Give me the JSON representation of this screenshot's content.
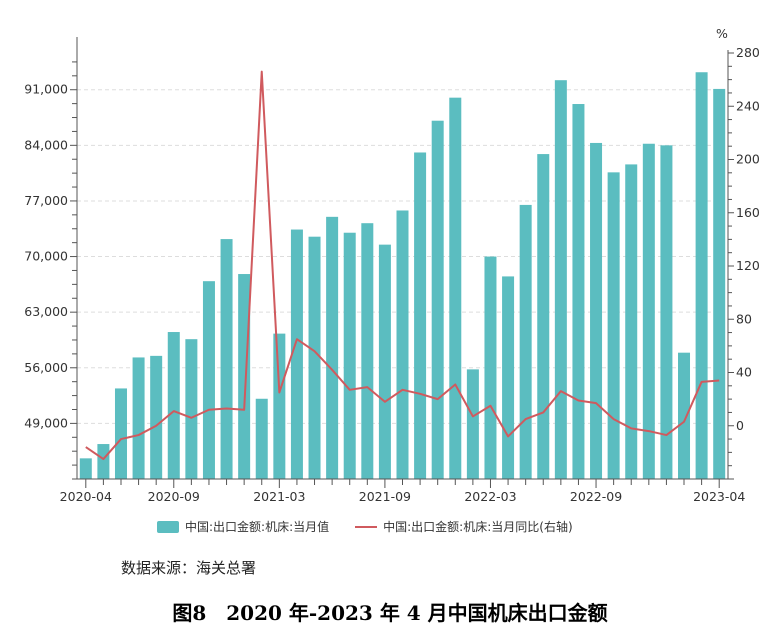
{
  "chart_data": {
    "type": "bar+line",
    "categories": [
      "2020-04",
      "2020-05",
      "2020-06",
      "2020-07",
      "2020-08",
      "2020-09",
      "2020-10",
      "2020-11",
      "2020-12",
      "2021-01",
      "2021-02",
      "2021-03",
      "2021-04",
      "2021-05",
      "2021-06",
      "2021-07",
      "2021-08",
      "2021-09",
      "2021-10",
      "2021-11",
      "2021-12",
      "2022-01",
      "2022-02",
      "2022-03",
      "2022-04",
      "2022-05",
      "2022-06",
      "2022-07",
      "2022-08",
      "2022-09",
      "2022-10",
      "2022-11",
      "2022-12",
      "2023-01",
      "2023-02",
      "2023-03",
      "2023-04"
    ],
    "x_tick_labels": [
      "2020-04",
      "2020-09",
      "2021-03",
      "2021-09",
      "2022-03",
      "2022-09",
      "2023-04"
    ],
    "series": [
      {
        "name": "中国:出口金额:机床:当月值",
        "type": "bar",
        "axis": "left",
        "color": "#5bbdc0",
        "values": [
          44600,
          46400,
          53400,
          57300,
          57500,
          60500,
          59600,
          66900,
          72200,
          67800,
          52100,
          60300,
          73400,
          72500,
          75000,
          73000,
          74200,
          71500,
          75800,
          83100,
          87100,
          90000,
          55800,
          70000,
          67500,
          76500,
          82900,
          92200,
          89200,
          84300,
          80600,
          81600,
          84200,
          84000,
          57900,
          93200,
          91100
        ]
      },
      {
        "name": "中国:出口金额:机床:当月同比(右轴)",
        "type": "line",
        "axis": "right",
        "color": "#d05a5e",
        "values": [
          -16,
          -25,
          -10,
          -7,
          0,
          11,
          6,
          12,
          13,
          12,
          266,
          25,
          65,
          56,
          42,
          27,
          29,
          18,
          27,
          24,
          20,
          31,
          7,
          15,
          -8,
          5,
          10,
          26,
          19,
          17,
          5,
          -2,
          -4,
          -7,
          3,
          33,
          34
        ]
      }
    ],
    "y_left": {
      "ticks": [
        "49,000",
        "56,000",
        "63,000",
        "70,000",
        "77,000",
        "84,000",
        "91,000"
      ],
      "tick_values": [
        49000,
        56000,
        63000,
        70000,
        77000,
        84000,
        91000
      ],
      "ylim": [
        42000,
        96000
      ]
    },
    "y_right": {
      "unit": "%",
      "ticks": [
        "0",
        "40",
        "80",
        "120",
        "160",
        "200",
        "240",
        "280"
      ],
      "tick_values": [
        0,
        40,
        80,
        120,
        160,
        200,
        240,
        280
      ],
      "ylim": [
        -40,
        280
      ]
    },
    "grid": true,
    "legend_position": "bottom"
  },
  "source": "数据来源：海关总署",
  "caption": "图8　2020 年-2023 年 4 月中国机床出口金额"
}
